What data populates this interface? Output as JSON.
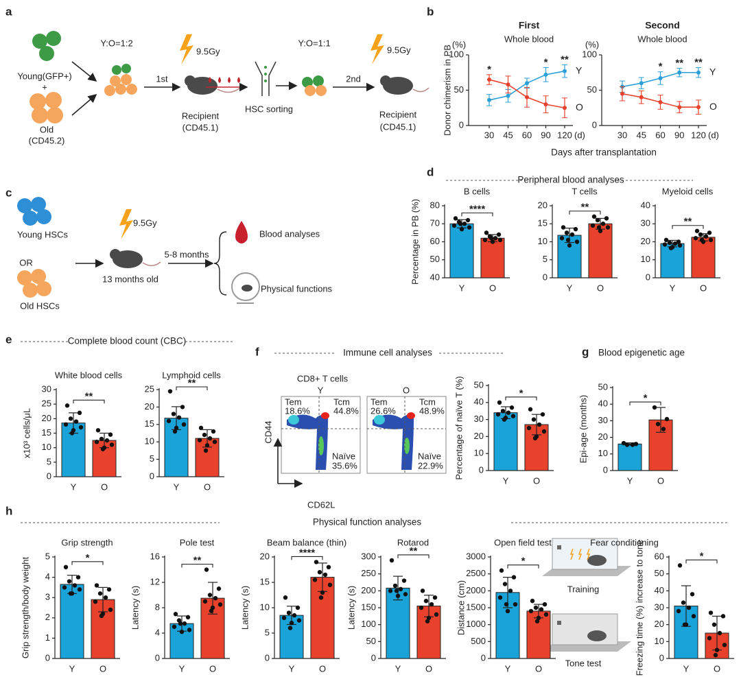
{
  "panel_labels": [
    "a",
    "b",
    "c",
    "d",
    "e",
    "f",
    "g",
    "h"
  ],
  "panel_a": {
    "young": "Young(GFP+)",
    "plus": "+",
    "old": "Old",
    "old_marker": "(CD45.2)",
    "ratio1": "Y:O=1:2",
    "first": "1st",
    "dose1": "9.5Gy",
    "recipient1": "Recipient",
    "recipient1_marker": "(CD45.1)",
    "sorting": "HSC sorting",
    "ratio2": "Y:O=1:1",
    "second": "2nd",
    "dose2": "9.5Gy",
    "recipient2": "Recipient",
    "recipient2_marker": "(CD45.1)"
  },
  "panel_b": {
    "xlabel": "Days after transplantation"
  },
  "panel_c": {
    "young": "Young HSCs",
    "or": "OR",
    "old": "Old HSCs",
    "dose": "9.5Gy",
    "age": "13 months old",
    "duration": "5-8 months",
    "blood": "Blood analyses",
    "physical": "Physical functions"
  },
  "panel_d": {
    "heading": "Peripheral blood analyses"
  },
  "panel_e": {
    "heading": "Complete blood count (CBC)"
  },
  "panel_f": {
    "heading": "Immune cell analyses",
    "subtitle": "CD8+ T cells",
    "y_axis": "CD44",
    "x_axis": "CD62L",
    "plots": [
      {
        "group": "Y",
        "tem_label": "Tem",
        "tem_value": "18.6%",
        "tcm_label": "Tcm",
        "tcm_value": "44.8%",
        "naive_label": "Naïve",
        "naive_value": "35.6%"
      },
      {
        "group": "O",
        "tem_label": "Tem",
        "tem_value": "26.6%",
        "tcm_label": "Tcm",
        "tcm_value": "48.9%",
        "naive_label": "Naïve",
        "naive_value": "22.9%"
      }
    ]
  },
  "panel_g": {
    "heading": "Blood epigenetic age"
  },
  "panel_h": {
    "heading": "Physical function analyses",
    "fear_heading": "Fear conditioning",
    "training": "Training",
    "tone_test": "Tone test"
  },
  "chart_data": [
    {
      "type": "line",
      "title": "First",
      "subtitle": "Whole blood",
      "ylabel": "Donor chimerism in PB",
      "yunit": "(%)",
      "xunit": "(d)",
      "categories": [
        "30",
        "45",
        "60",
        "90",
        "120"
      ],
      "ylim": [
        0,
        100
      ],
      "yticks": [
        0,
        50,
        100
      ],
      "series": [
        {
          "name": "Y",
          "color": "#2a9fd8",
          "values": [
            36,
            42,
            60,
            72,
            77
          ],
          "errors": [
            8,
            9,
            7,
            10,
            9
          ]
        },
        {
          "name": "O",
          "color": "#e8422d",
          "values": [
            65,
            58,
            40,
            30,
            25
          ],
          "errors": [
            7,
            12,
            14,
            12,
            14
          ]
        }
      ],
      "annotations": [
        "*",
        null,
        null,
        "*",
        "**"
      ]
    },
    {
      "type": "line",
      "title": "Second",
      "subtitle": "Whole blood",
      "yunit": "(%)",
      "xunit": "(d)",
      "categories": [
        "30",
        "45",
        "60",
        "90",
        "120"
      ],
      "ylim": [
        0,
        100
      ],
      "yticks": [
        0,
        50,
        100
      ],
      "series": [
        {
          "name": "Y",
          "color": "#2a9fd8",
          "values": [
            55,
            60,
            67,
            75,
            75
          ],
          "errors": [
            8,
            8,
            9,
            6,
            7
          ]
        },
        {
          "name": "O",
          "color": "#e8422d",
          "values": [
            45,
            40,
            33,
            26,
            26
          ],
          "errors": [
            10,
            9,
            10,
            8,
            10
          ]
        }
      ],
      "annotations": [
        null,
        null,
        "*",
        "**",
        "**"
      ]
    },
    {
      "type": "bar",
      "title": "B cells",
      "ylabel": "Percentage in PB (%)",
      "categories": [
        "Y",
        "O"
      ],
      "colors": [
        "#1aa3d9",
        "#e8422d"
      ],
      "values": [
        70,
        62
      ],
      "errors": [
        2.3,
        2
      ],
      "points": [
        [
          73,
          72,
          71,
          70,
          69,
          68,
          67,
          70
        ],
        [
          65,
          64,
          63,
          62,
          61,
          61,
          60,
          62
        ]
      ],
      "ylim": [
        40,
        80
      ],
      "yticks": [
        40,
        50,
        60,
        70,
        80
      ],
      "significance": "****"
    },
    {
      "type": "bar",
      "title": "T cells",
      "categories": [
        "Y",
        "O"
      ],
      "colors": [
        "#1aa3d9",
        "#e8422d"
      ],
      "values": [
        11.8,
        15
      ],
      "errors": [
        2,
        1.5
      ],
      "points": [
        [
          14,
          13.5,
          12.5,
          12,
          11,
          10,
          9,
          10.5
        ],
        [
          17,
          16.5,
          16,
          15,
          14.5,
          14,
          13,
          14
        ]
      ],
      "ylim": [
        0,
        20
      ],
      "yticks": [
        0,
        5,
        10,
        15,
        20
      ],
      "significance": "**"
    },
    {
      "type": "bar",
      "title": "Myeloid cells",
      "categories": [
        "Y",
        "O"
      ],
      "colors": [
        "#1aa3d9",
        "#e8422d"
      ],
      "values": [
        19,
        22.5
      ],
      "errors": [
        1.8,
        2
      ],
      "points": [
        [
          21,
          20,
          19.5,
          19,
          18.5,
          18,
          17,
          16.5
        ],
        [
          26,
          25,
          24,
          23,
          22,
          21,
          20,
          21
        ]
      ],
      "ylim": [
        0,
        40
      ],
      "yticks": [
        0,
        10,
        20,
        30,
        40
      ],
      "significance": "**"
    },
    {
      "type": "bar",
      "title": "White blood cells",
      "ylabel": "x10³ cells/μL",
      "categories": [
        "Y",
        "O"
      ],
      "colors": [
        "#1aa3d9",
        "#e8422d"
      ],
      "values": [
        18.5,
        12.5
      ],
      "errors": [
        3.5,
        2.5
      ],
      "points": [
        [
          24.5,
          22,
          20,
          19,
          18,
          17,
          16,
          15
        ],
        [
          16,
          14.5,
          13,
          12.5,
          12,
          11,
          10,
          9.5
        ]
      ],
      "ylim": [
        0,
        30
      ],
      "yticks": [
        0,
        5,
        10,
        15,
        20,
        25,
        30
      ],
      "significance": "**"
    },
    {
      "type": "bar",
      "title": "Lymphoid cells",
      "categories": [
        "Y",
        "O"
      ],
      "colors": [
        "#1aa3d9",
        "#e8422d"
      ],
      "values": [
        16.8,
        11
      ],
      "errors": [
        3.3,
        2.5
      ],
      "points": [
        [
          24.5,
          20,
          18,
          17,
          16,
          15,
          14,
          13
        ],
        [
          14,
          13,
          12,
          11,
          10.5,
          10,
          9,
          7.5
        ]
      ],
      "ylim": [
        0,
        25
      ],
      "yticks": [
        0,
        5,
        10,
        15,
        20,
        25
      ],
      "significance": "**"
    },
    {
      "type": "bar",
      "ylabel": "Percentage of naïve T (%)",
      "categories": [
        "Y",
        "O"
      ],
      "colors": [
        "#1aa3d9",
        "#e8422d"
      ],
      "values": [
        34,
        27
      ],
      "errors": [
        3.5,
        6
      ],
      "points": [
        [
          40,
          37,
          35,
          34,
          33,
          32,
          31,
          30
        ],
        [
          36,
          33,
          30,
          27,
          25,
          23,
          20,
          19
        ]
      ],
      "ylim": [
        0,
        50
      ],
      "yticks": [
        0,
        10,
        20,
        30,
        40,
        50
      ],
      "significance": "*"
    },
    {
      "type": "bar",
      "ylabel": "Epi-age (months)",
      "categories": [
        "Y",
        "O"
      ],
      "colors": [
        "#1aa3d9",
        "#e8422d"
      ],
      "values": [
        16,
        30.5
      ],
      "errors": [
        0.7,
        7.5
      ],
      "points": [
        [
          16.5,
          16,
          15.5,
          15.5
        ],
        [
          38,
          31,
          28,
          25
        ]
      ],
      "ylim": [
        0,
        50
      ],
      "yticks": [
        0,
        10,
        20,
        30,
        40,
        50
      ],
      "significance": "*"
    },
    {
      "type": "bar",
      "title": "Grip strength",
      "ylabel": "Grip strength/body weight",
      "categories": [
        "Y",
        "O"
      ],
      "colors": [
        "#1aa3d9",
        "#e8422d"
      ],
      "values": [
        3.65,
        2.9
      ],
      "errors": [
        0.45,
        0.6
      ],
      "points": [
        [
          4.5,
          4,
          3.8,
          3.6,
          3.5,
          3.4,
          3.2,
          3.2
        ],
        [
          3.6,
          3.4,
          3.2,
          3,
          2.8,
          2.4,
          2.2,
          2.1
        ]
      ],
      "ylim": [
        0,
        5
      ],
      "yticks": [
        0,
        1,
        2,
        3,
        4,
        5
      ],
      "significance": "*"
    },
    {
      "type": "bar",
      "title": "Pole test",
      "ylabel": "Latency (s)",
      "categories": [
        "Y",
        "O"
      ],
      "colors": [
        "#1aa3d9",
        "#e8422d"
      ],
      "values": [
        5.5,
        9.5
      ],
      "errors": [
        1.2,
        2.5
      ],
      "points": [
        [
          7,
          6.5,
          6,
          5.5,
          5,
          4.5,
          4.2,
          5.5
        ],
        [
          14,
          11,
          10,
          9.5,
          9,
          8.5,
          8,
          7.5
        ]
      ],
      "ylim": [
        0,
        16
      ],
      "yticks": [
        0,
        4,
        8,
        12,
        16
      ],
      "significance": "**"
    },
    {
      "type": "bar",
      "title": "Beam balance (thin)",
      "ylabel": "Latency (s)",
      "categories": [
        "Y",
        "O"
      ],
      "colors": [
        "#1aa3d9",
        "#e8422d"
      ],
      "values": [
        8.5,
        16
      ],
      "errors": [
        1.8,
        2.8
      ],
      "points": [
        [
          12,
          10,
          9,
          8.5,
          8,
          7.5,
          7,
          6
        ],
        [
          19,
          18,
          17,
          16.5,
          15.5,
          14.5,
          13,
          12
        ]
      ],
      "ylim": [
        0,
        20
      ],
      "yticks": [
        0,
        5,
        10,
        15,
        20
      ],
      "significance": "****"
    },
    {
      "type": "bar",
      "title": "Rotarod",
      "ylabel": "Latency (s)",
      "categories": [
        "Y",
        "O"
      ],
      "colors": [
        "#1aa3d9",
        "#e8422d"
      ],
      "values": [
        208,
        155
      ],
      "errors": [
        35,
        32
      ],
      "points": [
        [
          290,
          230,
          215,
          205,
          200,
          190,
          185,
          200
        ],
        [
          200,
          180,
          170,
          160,
          150,
          130,
          120,
          110
        ]
      ],
      "ylim": [
        0,
        300
      ],
      "yticks": [
        0,
        50,
        100,
        150,
        200,
        250,
        300
      ],
      "significance": "**"
    },
    {
      "type": "bar",
      "title": "Open field test",
      "ylabel": "Distance (cm)",
      "categories": [
        "Y",
        "O"
      ],
      "colors": [
        "#1aa3d9",
        "#e8422d"
      ],
      "values": [
        1950,
        1400
      ],
      "errors": [
        450,
        200
      ],
      "points": [
        [
          2600,
          2400,
          2200,
          2000,
          1800,
          1600,
          1400,
          1600
        ],
        [
          1700,
          1600,
          1500,
          1450,
          1400,
          1300,
          1200,
          1100
        ]
      ],
      "ylim": [
        0,
        3000
      ],
      "yticks": [
        0,
        500,
        1000,
        1500,
        2000,
        2500,
        3000
      ],
      "significance": "*"
    },
    {
      "type": "bar",
      "ylabel": "Freezing time (%) increase to tone",
      "categories": [
        "Y",
        "O"
      ],
      "colors": [
        "#1aa3d9",
        "#e8422d"
      ],
      "values": [
        31,
        15
      ],
      "errors": [
        12,
        10
      ],
      "points": [
        [
          55,
          38,
          33,
          30,
          28,
          25,
          20,
          20
        ],
        [
          27,
          25,
          20,
          15,
          12,
          8,
          5,
          2
        ]
      ],
      "ylim": [
        0,
        60
      ],
      "yticks": [
        0,
        10,
        20,
        30,
        40,
        50,
        60
      ],
      "significance": "*"
    }
  ]
}
